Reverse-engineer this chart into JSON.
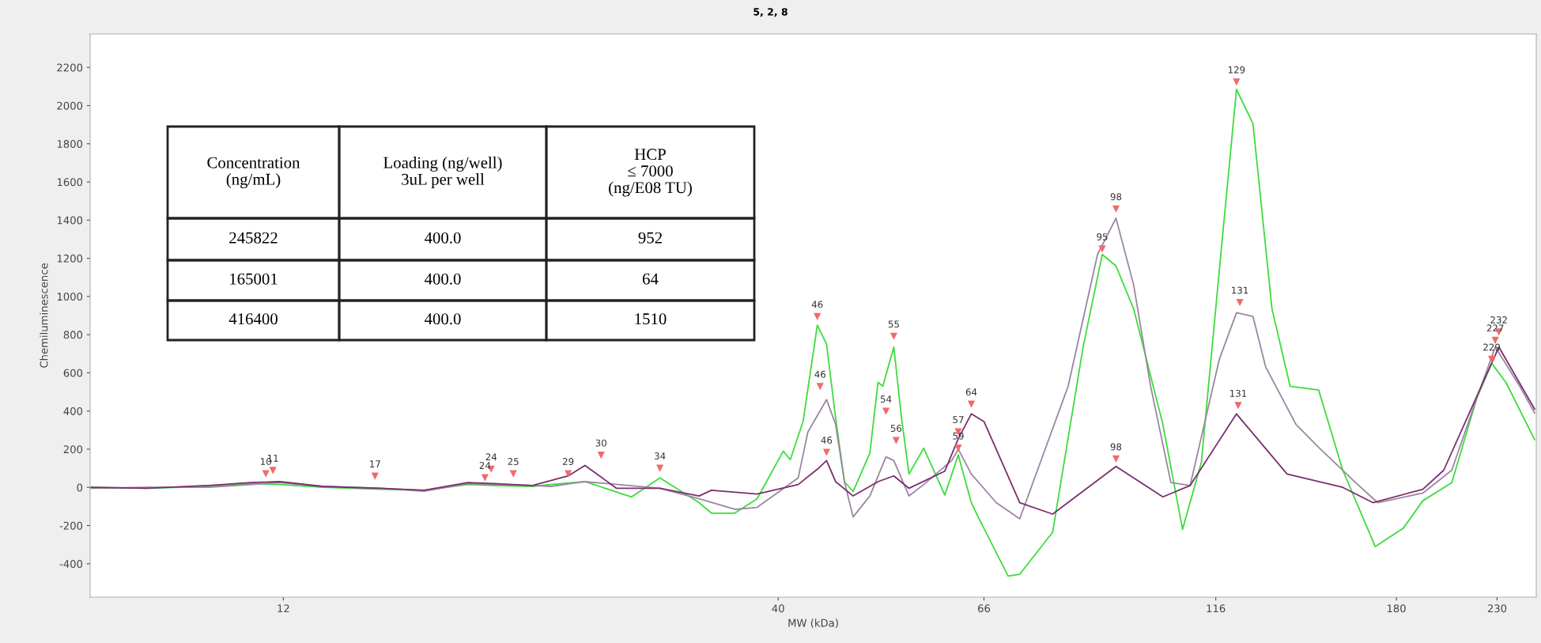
{
  "chart_data": {
    "type": "line",
    "title": "5, 2, 8",
    "xlabel": "MW (kDa)",
    "ylabel": "Chemiluminescence",
    "log": "x",
    "xlim": [
      7.5,
      253
    ],
    "xticks": [
      12,
      40,
      66,
      116,
      180,
      230
    ],
    "ylim": [
      -575,
      2375
    ],
    "yticks": [
      -400,
      -200,
      0,
      200,
      400,
      600,
      800,
      1000,
      1200,
      1400,
      1600,
      1800,
      2000,
      2200
    ],
    "grid": false,
    "marker": "none",
    "line_style": "solid",
    "series": [
      {
        "color": "#3ddc3d",
        "x": [
          7.5,
          8.6,
          10.0,
          11.1,
          11.9,
          13.2,
          15.2,
          16.9,
          18.8,
          20,
          22,
          23,
          25,
          28,
          30,
          33,
          34,
          36,
          38,
          40.5,
          41.2,
          42.5,
          44,
          45,
          46,
          47,
          48,
          50,
          51,
          51.6,
          53,
          54,
          55,
          57,
          60,
          62,
          64,
          65,
          70,
          72,
          78,
          84,
          88,
          91,
          95,
          102,
          107,
          112,
          117,
          122,
          127,
          133,
          139,
          149,
          158,
          171,
          183,
          192,
          206,
          219,
          227,
          235,
          252
        ],
        "values": [
          0,
          -5,
          5,
          20,
          15,
          0,
          -10,
          -15,
          15,
          10,
          5,
          15,
          30,
          -50,
          50,
          -80,
          -135,
          -135,
          -60,
          190,
          145,
          345,
          850,
          750,
          365,
          30,
          -22,
          180,
          550,
          530,
          735,
          365,
          70,
          205,
          -40,
          170,
          -80,
          -150,
          -465,
          -455,
          -235,
          735,
          1220,
          1160,
          935,
          330,
          -220,
          130,
          1135,
          2085,
          1905,
          935,
          530,
          510,
          90,
          -310,
          -215,
          -70,
          25,
          470,
          650,
          550,
          250
        ]
      },
      {
        "color": "#9c86a3",
        "x": [
          7.5,
          8.6,
          10.0,
          11.1,
          11.9,
          13.2,
          15.2,
          16.9,
          18.8,
          20,
          22,
          23,
          25,
          30,
          33,
          36,
          38,
          42,
          43,
          45,
          46,
          47,
          48,
          50,
          52,
          53,
          55,
          57,
          61,
          62,
          64,
          68,
          72,
          81,
          87,
          91,
          95,
          99,
          104,
          109,
          117,
          122,
          127,
          131,
          141,
          149,
          163,
          172,
          192,
          206,
          219,
          229,
          243,
          252
        ],
        "values": [
          -5,
          0,
          0,
          15,
          25,
          5,
          -5,
          -20,
          20,
          15,
          10,
          5,
          30,
          -5,
          -60,
          -115,
          -105,
          50,
          290,
          460,
          330,
          30,
          -155,
          -45,
          160,
          140,
          -45,
          15,
          140,
          200,
          70,
          -80,
          -165,
          530,
          1220,
          1410,
          1060,
          530,
          25,
          10,
          670,
          915,
          895,
          630,
          330,
          210,
          25,
          -80,
          -30,
          90,
          470,
          735,
          530,
          390
        ]
      },
      {
        "color": "#7a2f6e",
        "x": [
          7.5,
          8.6,
          10.0,
          11.1,
          11.9,
          13.2,
          15.2,
          16.9,
          18.8,
          20,
          22,
          24,
          25,
          27,
          30,
          33,
          34,
          38,
          42,
          44,
          45,
          46,
          48,
          51,
          53,
          55,
          60,
          62,
          64,
          66,
          72,
          78,
          91,
          102,
          109,
          122,
          138,
          158,
          170,
          192,
          202,
          231,
          252
        ],
        "values": [
          0,
          -5,
          10,
          25,
          30,
          5,
          -5,
          -15,
          25,
          20,
          10,
          60,
          115,
          -5,
          -5,
          -45,
          -15,
          -35,
          15,
          95,
          140,
          30,
          -45,
          30,
          60,
          -5,
          85,
          255,
          385,
          345,
          -80,
          -140,
          110,
          -50,
          10,
          385,
          70,
          0,
          -80,
          -10,
          90,
          735,
          410
        ]
      }
    ],
    "annotations": [
      {
        "text": "10",
        "x": 11.5,
        "y": 73
      },
      {
        "text": "11",
        "x": 11.7,
        "y": 90
      },
      {
        "text": "17",
        "x": 15.0,
        "y": 60
      },
      {
        "text": "24",
        "x": 19.6,
        "y": 52
      },
      {
        "text": "24",
        "x": 19.9,
        "y": 97
      },
      {
        "text": "25",
        "x": 21,
        "y": 73
      },
      {
        "text": "29",
        "x": 24,
        "y": 73
      },
      {
        "text": "30",
        "x": 26,
        "y": 170
      },
      {
        "text": "34",
        "x": 30,
        "y": 102
      },
      {
        "text": "46",
        "x": 44,
        "y": 896
      },
      {
        "text": "46",
        "x": 44.3,
        "y": 530
      },
      {
        "text": "46",
        "x": 45,
        "y": 185
      },
      {
        "text": "55",
        "x": 53,
        "y": 793
      },
      {
        "text": "54",
        "x": 52,
        "y": 400
      },
      {
        "text": "56",
        "x": 53.3,
        "y": 247
      },
      {
        "text": "57",
        "x": 62,
        "y": 292
      },
      {
        "text": "59",
        "x": 62,
        "y": 207
      },
      {
        "text": "64",
        "x": 64,
        "y": 437
      },
      {
        "text": "98",
        "x": 91,
        "y": 1460
      },
      {
        "text": "95",
        "x": 88,
        "y": 1250
      },
      {
        "text": "98",
        "x": 91,
        "y": 150
      },
      {
        "text": "129",
        "x": 122,
        "y": 2125
      },
      {
        "text": "131",
        "x": 123,
        "y": 970
      },
      {
        "text": "131",
        "x": 122.5,
        "y": 430
      },
      {
        "text": "227",
        "x": 229,
        "y": 772
      },
      {
        "text": "232",
        "x": 231,
        "y": 815
      },
      {
        "text": "229",
        "x": 227,
        "y": 672
      },
      "Concentration\n(ng/mL)",
      "Loading (ng/well)\n3uL per well",
      "HCP\n≤ 7000\n(ng/E08 TU)",
      "245822",
      "400.0",
      "952",
      "165001",
      "400.0",
      "64",
      "416400",
      "400.0",
      "1510"
    ]
  }
}
